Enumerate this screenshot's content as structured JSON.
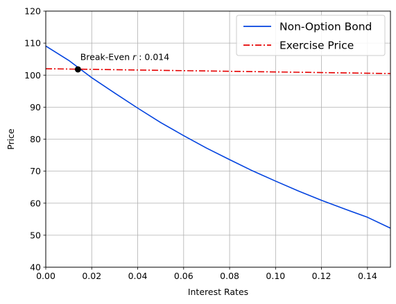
{
  "chart_data": {
    "type": "line",
    "title": "",
    "xlabel": "Interest Rates",
    "ylabel": "Price",
    "xlim": [
      0.0,
      0.15
    ],
    "ylim": [
      40,
      120
    ],
    "x_ticks": [
      0.0,
      0.02,
      0.04,
      0.06,
      0.08,
      0.1,
      0.12,
      0.14
    ],
    "x_tick_labels": [
      "0.00",
      "0.02",
      "0.04",
      "0.06",
      "0.08",
      "0.10",
      "0.12",
      "0.14"
    ],
    "y_ticks": [
      40,
      50,
      60,
      70,
      80,
      90,
      100,
      110,
      120
    ],
    "y_tick_labels": [
      "40",
      "50",
      "60",
      "70",
      "80",
      "90",
      "100",
      "110",
      "120"
    ],
    "grid": true,
    "legend_position": "top-right",
    "series": [
      {
        "name": "Non-Option Bond",
        "color": "#0343df",
        "line_style": "solid",
        "x": [
          0.0,
          0.01,
          0.02,
          0.03,
          0.04,
          0.05,
          0.06,
          0.07,
          0.08,
          0.09,
          0.1,
          0.11,
          0.12,
          0.13,
          0.14,
          0.15
        ],
        "values": [
          109.1,
          104.6,
          99.2,
          94.4,
          89.7,
          85.2,
          81.1,
          77.2,
          73.6,
          70.1,
          66.9,
          63.8,
          60.9,
          58.2,
          55.6,
          52.2
        ]
      },
      {
        "name": "Exercise Price",
        "color": "#e50000",
        "line_style": "dashdot",
        "x": [
          0.0,
          0.03,
          0.06,
          0.09,
          0.12,
          0.15
        ],
        "values": [
          102.0,
          101.7,
          101.4,
          101.1,
          100.8,
          100.5
        ]
      }
    ],
    "annotations": [
      {
        "prefix": "Break-Even ",
        "symbol": "r",
        "suffix": " : 0.014",
        "point_x": 0.014,
        "point_y": 101.8,
        "text_x": 0.015,
        "text_y": 104.7
      }
    ]
  }
}
